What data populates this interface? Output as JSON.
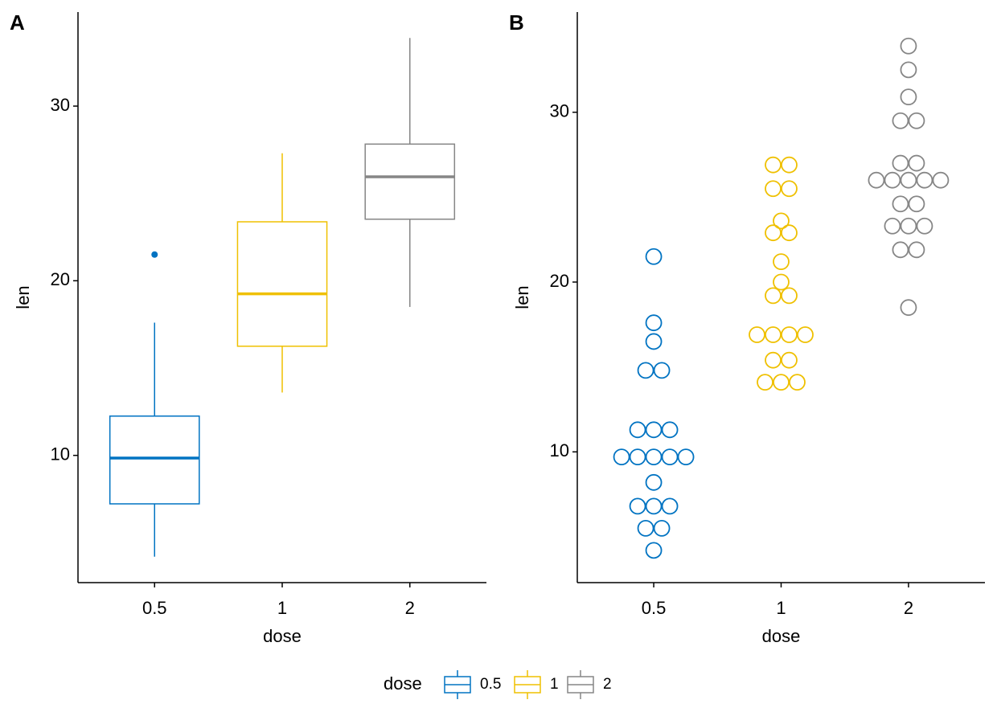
{
  "chart_data": [
    {
      "type": "box",
      "tag": "A",
      "xlabel": "dose",
      "ylabel": "len",
      "categories": [
        "0.5",
        "1",
        "2"
      ],
      "colors": [
        "#0073C2",
        "#EFC000",
        "#868686"
      ],
      "boxes": [
        {
          "whisker_low": 4.2,
          "q1": 7.225,
          "median": 9.85,
          "q3": 12.25,
          "whisker_high": 17.6,
          "outliers": [
            21.5
          ]
        },
        {
          "whisker_low": 13.6,
          "q1": 16.25,
          "median": 19.25,
          "q3": 23.375,
          "whisker_high": 27.3,
          "outliers": []
        },
        {
          "whisker_low": 18.5,
          "q1": 23.525,
          "median": 25.95,
          "q3": 27.825,
          "whisker_high": 33.9,
          "outliers": []
        }
      ],
      "ylim": [
        2.715,
        35.385
      ],
      "yticks": [
        10,
        20,
        30
      ]
    },
    {
      "type": "dotplot",
      "tag": "B",
      "xlabel": "dose",
      "ylabel": "len",
      "categories": [
        "0.5",
        "1",
        "2"
      ],
      "colors": [
        "#0073C2",
        "#EFC000",
        "#868686"
      ],
      "groups": [
        {
          "values": [
            4.2,
            5.5,
            6.8,
            8.2,
            9.7,
            11.3,
            14.8,
            16.5,
            17.6,
            21.5
          ],
          "counts": [
            1,
            2,
            3,
            1,
            5,
            3,
            2,
            1,
            1,
            1
          ]
        },
        {
          "values": [
            14.1,
            15.4,
            16.9,
            19.2,
            20.0,
            21.2,
            22.9,
            23.6,
            25.5,
            26.9
          ],
          "counts": [
            3,
            2,
            4,
            2,
            1,
            1,
            2,
            1,
            2,
            2
          ]
        },
        {
          "values": [
            18.5,
            21.9,
            23.3,
            24.6,
            26.0,
            27.0,
            29.5,
            30.9,
            32.5,
            33.9
          ],
          "counts": [
            1,
            2,
            3,
            2,
            5,
            2,
            2,
            1,
            1,
            1
          ]
        }
      ],
      "ylim": [
        2.3,
        35.9
      ],
      "yticks": [
        10,
        20,
        30
      ]
    }
  ],
  "legend": {
    "title": "dose"
  }
}
